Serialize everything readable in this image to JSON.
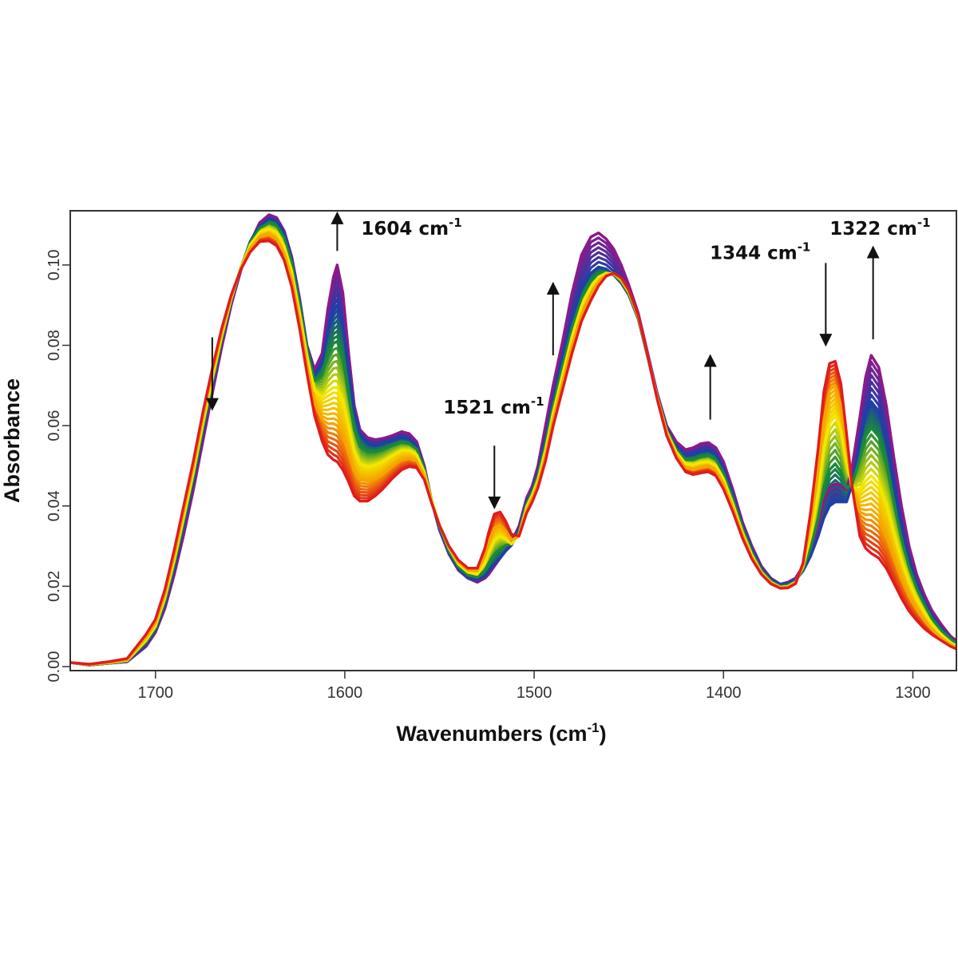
{
  "chart_data": {
    "type": "line",
    "title": "",
    "xlabel": "Wavenumbers (cm-1)",
    "xlabel_base": "Wavenumbers (cm",
    "xlabel_sup": "-1",
    "xlabel_close": ")",
    "ylabel": "Absorbance",
    "xlim": [
      1745,
      1277
    ],
    "ylim": [
      -0.001,
      0.1135
    ],
    "x_reversed": true,
    "grid": false,
    "legend": "none",
    "x_ticks": [
      {
        "value": 1700,
        "label": "1700"
      },
      {
        "value": 1600,
        "label": "1600"
      },
      {
        "value": 1500,
        "label": "1500"
      },
      {
        "value": 1400,
        "label": "1400"
      },
      {
        "value": 1300,
        "label": "1300"
      }
    ],
    "y_ticks": [
      {
        "value": 0.0,
        "label": "0.00"
      },
      {
        "value": 0.02,
        "label": "0.02"
      },
      {
        "value": 0.04,
        "label": "0.04"
      },
      {
        "value": 0.06,
        "label": "0.06"
      },
      {
        "value": 0.08,
        "label": "0.08"
      },
      {
        "value": 0.1,
        "label": "0.10"
      }
    ],
    "series_colors": [
      "#8b1a8b",
      "#1f3fa8",
      "#1a8a3a",
      "#f2e600",
      "#f5a500",
      "#e01c1c"
    ],
    "x": [
      1745,
      1735,
      1725,
      1715,
      1705,
      1700,
      1695,
      1690,
      1685,
      1680,
      1675,
      1670,
      1665,
      1660,
      1655,
      1650,
      1645,
      1640,
      1636,
      1632,
      1628,
      1624,
      1620,
      1616,
      1612,
      1609,
      1606,
      1604,
      1601,
      1598,
      1595,
      1592,
      1588,
      1584,
      1580,
      1575,
      1570,
      1566,
      1562,
      1558,
      1554,
      1550,
      1545,
      1540,
      1535,
      1530,
      1526,
      1524,
      1521,
      1518,
      1515,
      1512,
      1508,
      1504,
      1501,
      1498,
      1494,
      1490,
      1485,
      1480,
      1475,
      1470,
      1466,
      1462,
      1458,
      1454,
      1450,
      1445,
      1440,
      1435,
      1430,
      1425,
      1420,
      1416,
      1412,
      1408,
      1404,
      1400,
      1395,
      1390,
      1385,
      1380,
      1375,
      1370,
      1366,
      1362,
      1358,
      1354,
      1350,
      1347,
      1344,
      1341,
      1338,
      1335,
      1332,
      1328,
      1325,
      1322,
      1318,
      1314,
      1310,
      1306,
      1302,
      1298,
      1294,
      1290,
      1285,
      1280,
      1277
    ],
    "series": [
      {
        "values": [
          0.001,
          0.0004,
          0.0008,
          0.0012,
          0.005,
          0.0085,
          0.0145,
          0.023,
          0.033,
          0.044,
          0.056,
          0.068,
          0.0795,
          0.09,
          0.0985,
          0.1055,
          0.1105,
          0.1125,
          0.1118,
          0.1085,
          0.102,
          0.092,
          0.08,
          0.074,
          0.078,
          0.089,
          0.097,
          0.1,
          0.093,
          0.078,
          0.065,
          0.059,
          0.057,
          0.0565,
          0.0568,
          0.0575,
          0.0585,
          0.058,
          0.056,
          0.05,
          0.041,
          0.034,
          0.028,
          0.024,
          0.022,
          0.021,
          0.022,
          0.023,
          0.025,
          0.027,
          0.029,
          0.031,
          0.035,
          0.042,
          0.045,
          0.05,
          0.06,
          0.07,
          0.081,
          0.093,
          0.1025,
          0.107,
          0.108,
          0.1065,
          0.104,
          0.1,
          0.095,
          0.088,
          0.078,
          0.068,
          0.06,
          0.056,
          0.054,
          0.0545,
          0.0555,
          0.0558,
          0.0545,
          0.051,
          0.044,
          0.036,
          0.03,
          0.025,
          0.022,
          0.0205,
          0.021,
          0.022,
          0.025,
          0.029,
          0.035,
          0.041,
          0.0445,
          0.0455,
          0.045,
          0.044,
          0.05,
          0.062,
          0.072,
          0.0775,
          0.0745,
          0.065,
          0.052,
          0.04,
          0.03,
          0.023,
          0.018,
          0.014,
          0.0105,
          0.0075,
          0.0065
        ]
      },
      {
        "values": [
          0.001,
          0.0004,
          0.0008,
          0.0013,
          0.0055,
          0.009,
          0.0155,
          0.0245,
          0.035,
          0.046,
          0.058,
          0.0698,
          0.081,
          0.091,
          0.099,
          0.1058,
          0.1098,
          0.1115,
          0.111,
          0.108,
          0.1015,
          0.0915,
          0.0798,
          0.0725,
          0.0755,
          0.0835,
          0.0885,
          0.09,
          0.085,
          0.074,
          0.0635,
          0.058,
          0.0555,
          0.055,
          0.0555,
          0.0562,
          0.057,
          0.0565,
          0.055,
          0.0495,
          0.041,
          0.0342,
          0.0282,
          0.0242,
          0.0222,
          0.0215,
          0.0225,
          0.0238,
          0.0255,
          0.027,
          0.0288,
          0.0302,
          0.034,
          0.0412,
          0.044,
          0.0485,
          0.057,
          0.0665,
          0.0765,
          0.0865,
          0.094,
          0.098,
          0.0995,
          0.099,
          0.0975,
          0.0955,
          0.0925,
          0.0865,
          0.077,
          0.0672,
          0.0592,
          0.0548,
          0.0525,
          0.0528,
          0.0535,
          0.0538,
          0.0528,
          0.0495,
          0.0428,
          0.0352,
          0.0292,
          0.0245,
          0.0218,
          0.0205,
          0.0208,
          0.0215,
          0.0238,
          0.0275,
          0.0325,
          0.037,
          0.04,
          0.041,
          0.041,
          0.041,
          0.0455,
          0.0555,
          0.0625,
          0.066,
          0.0635,
          0.056,
          0.045,
          0.035,
          0.027,
          0.021,
          0.0165,
          0.0128,
          0.0095,
          0.007,
          0.006
        ]
      },
      {
        "values": [
          0.001,
          0.0004,
          0.0008,
          0.0014,
          0.006,
          0.0095,
          0.0162,
          0.0255,
          0.036,
          0.047,
          0.059,
          0.0705,
          0.0815,
          0.0912,
          0.0992,
          0.1055,
          0.1092,
          0.1105,
          0.1098,
          0.1068,
          0.1005,
          0.0905,
          0.0792,
          0.0712,
          0.0725,
          0.0775,
          0.0805,
          0.081,
          0.0765,
          0.0675,
          0.059,
          0.0548,
          0.0535,
          0.0535,
          0.054,
          0.055,
          0.0558,
          0.0555,
          0.0542,
          0.0492,
          0.0412,
          0.0348,
          0.0288,
          0.0248,
          0.0228,
          0.0222,
          0.024,
          0.0258,
          0.028,
          0.0292,
          0.0302,
          0.0305,
          0.0335,
          0.0405,
          0.0435,
          0.0475,
          0.0555,
          0.065,
          0.075,
          0.0845,
          0.0918,
          0.096,
          0.0978,
          0.0982,
          0.0975,
          0.0958,
          0.0928,
          0.0868,
          0.0772,
          0.0672,
          0.059,
          0.0542,
          0.0515,
          0.0515,
          0.0522,
          0.0525,
          0.0515,
          0.0482,
          0.0418,
          0.0345,
          0.0285,
          0.024,
          0.0213,
          0.02,
          0.0203,
          0.0212,
          0.0242,
          0.0295,
          0.037,
          0.0448,
          0.049,
          0.0505,
          0.0485,
          0.0445,
          0.0455,
          0.0518,
          0.0572,
          0.0595,
          0.0572,
          0.0505,
          0.0408,
          0.0318,
          0.0248,
          0.0195,
          0.0155,
          0.012,
          0.009,
          0.0068,
          0.0058
        ]
      },
      {
        "values": [
          0.001,
          0.0005,
          0.0009,
          0.0015,
          0.0065,
          0.01,
          0.017,
          0.0265,
          0.0372,
          0.0482,
          0.0602,
          0.0715,
          0.0822,
          0.0915,
          0.0992,
          0.105,
          0.1082,
          0.109,
          0.108,
          0.1048,
          0.0985,
          0.0885,
          0.0775,
          0.0688,
          0.0672,
          0.0685,
          0.0695,
          0.0695,
          0.0662,
          0.0598,
          0.0535,
          0.0505,
          0.0498,
          0.0502,
          0.051,
          0.0525,
          0.0538,
          0.0538,
          0.0528,
          0.0485,
          0.0412,
          0.0352,
          0.0295,
          0.0255,
          0.0235,
          0.023,
          0.0258,
          0.0285,
          0.0315,
          0.0325,
          0.0318,
          0.0305,
          0.0328,
          0.0398,
          0.0428,
          0.0465,
          0.054,
          0.0632,
          0.0728,
          0.0822,
          0.0898,
          0.0945,
          0.097,
          0.098,
          0.0978,
          0.0962,
          0.0932,
          0.087,
          0.0772,
          0.067,
          0.0585,
          0.0535,
          0.0505,
          0.0502,
          0.0508,
          0.051,
          0.05,
          0.0468,
          0.0405,
          0.0335,
          0.0278,
          0.0235,
          0.021,
          0.0198,
          0.02,
          0.021,
          0.0248,
          0.0325,
          0.0435,
          0.0545,
          0.0605,
          0.0625,
          0.059,
          0.051,
          0.0445,
          0.0442,
          0.0462,
          0.0475,
          0.0455,
          0.0405,
          0.0332,
          0.0265,
          0.021,
          0.0168,
          0.0135,
          0.0105,
          0.008,
          0.006,
          0.0052
        ]
      },
      {
        "values": [
          0.001,
          0.0005,
          0.001,
          0.0017,
          0.0072,
          0.0108,
          0.018,
          0.0278,
          0.0388,
          0.0498,
          0.0618,
          0.073,
          0.0832,
          0.092,
          0.099,
          0.1042,
          0.107,
          0.1075,
          0.1064,
          0.103,
          0.0965,
          0.0865,
          0.0752,
          0.0655,
          0.0615,
          0.0605,
          0.0605,
          0.06,
          0.0575,
          0.0532,
          0.0485,
          0.0465,
          0.0462,
          0.0468,
          0.0478,
          0.0498,
          0.0515,
          0.0518,
          0.0512,
          0.0475,
          0.0408,
          0.0352,
          0.0298,
          0.026,
          0.024,
          0.0238,
          0.0275,
          0.031,
          0.0345,
          0.0352,
          0.0338,
          0.0315,
          0.0325,
          0.039,
          0.042,
          0.0455,
          0.0525,
          0.0615,
          0.0708,
          0.08,
          0.0878,
          0.0928,
          0.0958,
          0.0975,
          0.0978,
          0.0965,
          0.0935,
          0.0872,
          0.0772,
          0.0668,
          0.058,
          0.0528,
          0.0495,
          0.049,
          0.0495,
          0.0498,
          0.0488,
          0.0455,
          0.0395,
          0.0328,
          0.0272,
          0.0232,
          0.0208,
          0.0197,
          0.0198,
          0.0208,
          0.0252,
          0.0355,
          0.049,
          0.0615,
          0.0688,
          0.07,
          0.065,
          0.0545,
          0.0445,
          0.0385,
          0.0378,
          0.0378,
          0.0362,
          0.0325,
          0.027,
          0.0218,
          0.0175,
          0.0142,
          0.0115,
          0.0092,
          0.0072,
          0.0055,
          0.0048
        ]
      },
      {
        "values": [
          0.001,
          0.0006,
          0.0012,
          0.002,
          0.008,
          0.0118,
          0.0192,
          0.0292,
          0.0402,
          0.0512,
          0.0632,
          0.0742,
          0.0842,
          0.0925,
          0.0988,
          0.1032,
          0.1058,
          0.106,
          0.1048,
          0.1012,
          0.0945,
          0.0845,
          0.073,
          0.0625,
          0.0562,
          0.0528,
          0.0515,
          0.051,
          0.049,
          0.046,
          0.0425,
          0.0412,
          0.0412,
          0.0425,
          0.0442,
          0.0468,
          0.049,
          0.0498,
          0.0495,
          0.0465,
          0.0405,
          0.0352,
          0.03,
          0.0265,
          0.0245,
          0.0245,
          0.0295,
          0.0335,
          0.038,
          0.0385,
          0.0362,
          0.033,
          0.0325,
          0.0382,
          0.041,
          0.0445,
          0.0512,
          0.0598,
          0.069,
          0.078,
          0.086,
          0.0912,
          0.0948,
          0.0972,
          0.098,
          0.0968,
          0.0938,
          0.0875,
          0.0772,
          0.0665,
          0.0575,
          0.052,
          0.0485,
          0.0478,
          0.0482,
          0.0485,
          0.0475,
          0.0442,
          0.0385,
          0.032,
          0.0268,
          0.023,
          0.0206,
          0.0195,
          0.0196,
          0.0206,
          0.0258,
          0.0385,
          0.0545,
          0.0685,
          0.0755,
          0.076,
          0.0705,
          0.058,
          0.0445,
          0.0325,
          0.0295,
          0.0282,
          0.027,
          0.0245,
          0.0208,
          0.017,
          0.0138,
          0.0115,
          0.0095,
          0.008,
          0.0065,
          0.005,
          0.0044
        ]
      }
    ],
    "annotations": [
      {
        "text": "1604 cm-1",
        "base": "1604 cm",
        "sup": "-1",
        "x": 1604,
        "y": 0.1075
      },
      {
        "text": "1521 cm-1",
        "base": "1521 cm",
        "sup": "-1",
        "x": 1521,
        "y": 0.063
      },
      {
        "text": "1344 cm-1",
        "base": "1344 cm",
        "sup": "-1",
        "x": 1344,
        "y": 0.1015
      },
      {
        "text": "1322 cm-1",
        "base": "1322 cm",
        "sup": "-1",
        "x": 1322,
        "y": 0.1075
      }
    ],
    "trend_arrows": [
      {
        "x": 1670,
        "from": 0.082,
        "to": 0.064,
        "direction": "down"
      },
      {
        "x": 1604,
        "from": 0.1035,
        "to": 0.113,
        "direction": "up"
      },
      {
        "x": 1521,
        "from": 0.055,
        "to": 0.0395,
        "direction": "down"
      },
      {
        "x": 1490,
        "from": 0.0775,
        "to": 0.0955,
        "direction": "up"
      },
      {
        "x": 1407,
        "from": 0.0615,
        "to": 0.0775,
        "direction": "up"
      },
      {
        "x": 1346,
        "from": 0.1005,
        "to": 0.08,
        "direction": "down"
      },
      {
        "x": 1321,
        "from": 0.0815,
        "to": 0.1045,
        "direction": "up"
      }
    ]
  }
}
